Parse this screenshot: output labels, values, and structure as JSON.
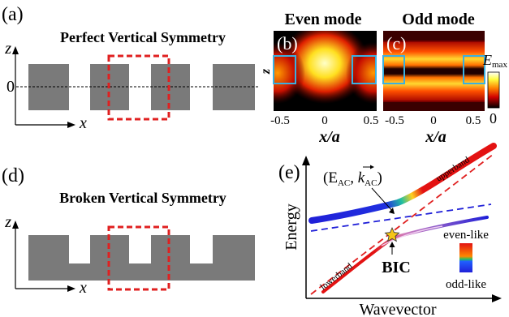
{
  "panel_a": {
    "label": "(a)",
    "title": "Perfect Vertical Symmetry",
    "axis_z": "z",
    "axis_x": "x",
    "zero_label": "0"
  },
  "panel_b": {
    "label": "(b)",
    "title": "Even mode"
  },
  "panel_c": {
    "label": "(c)",
    "title": "Odd mode"
  },
  "field_axes": {
    "z_label": "z",
    "x_label": "x/a",
    "b_ticks": [
      "-0.5",
      "0",
      "0.5"
    ],
    "c_ticks": [
      "-0.5",
      "0",
      "0.5"
    ]
  },
  "colorbar": {
    "max_label_main": "E",
    "max_label_sub": "max",
    "min_label": "0"
  },
  "panel_d": {
    "label": "(d)",
    "title": "Broken Vertical Symmetry",
    "axis_z": "z",
    "axis_x": "x"
  },
  "panel_e": {
    "label": "(e)",
    "ylabel": "Energy",
    "xlabel": "Wavevector",
    "annotation_main": "(E",
    "annotation_sub1": "AC",
    "annotation_mid": ", k",
    "annotation_sub2": "AC",
    "annotation_end": ")",
    "upper_band_label": "upperband",
    "lower_band_label": "lowerband",
    "bic_label": "BIC",
    "legend_top": "even-like",
    "legend_bottom": "odd-like"
  },
  "colors": {
    "grating": "#7a7a7a",
    "highlight": "#e02020",
    "mode_outline": "#3ab0e0",
    "band_upper": "#e31212",
    "band_lower": "#2020d8",
    "star": "#f5c518"
  }
}
